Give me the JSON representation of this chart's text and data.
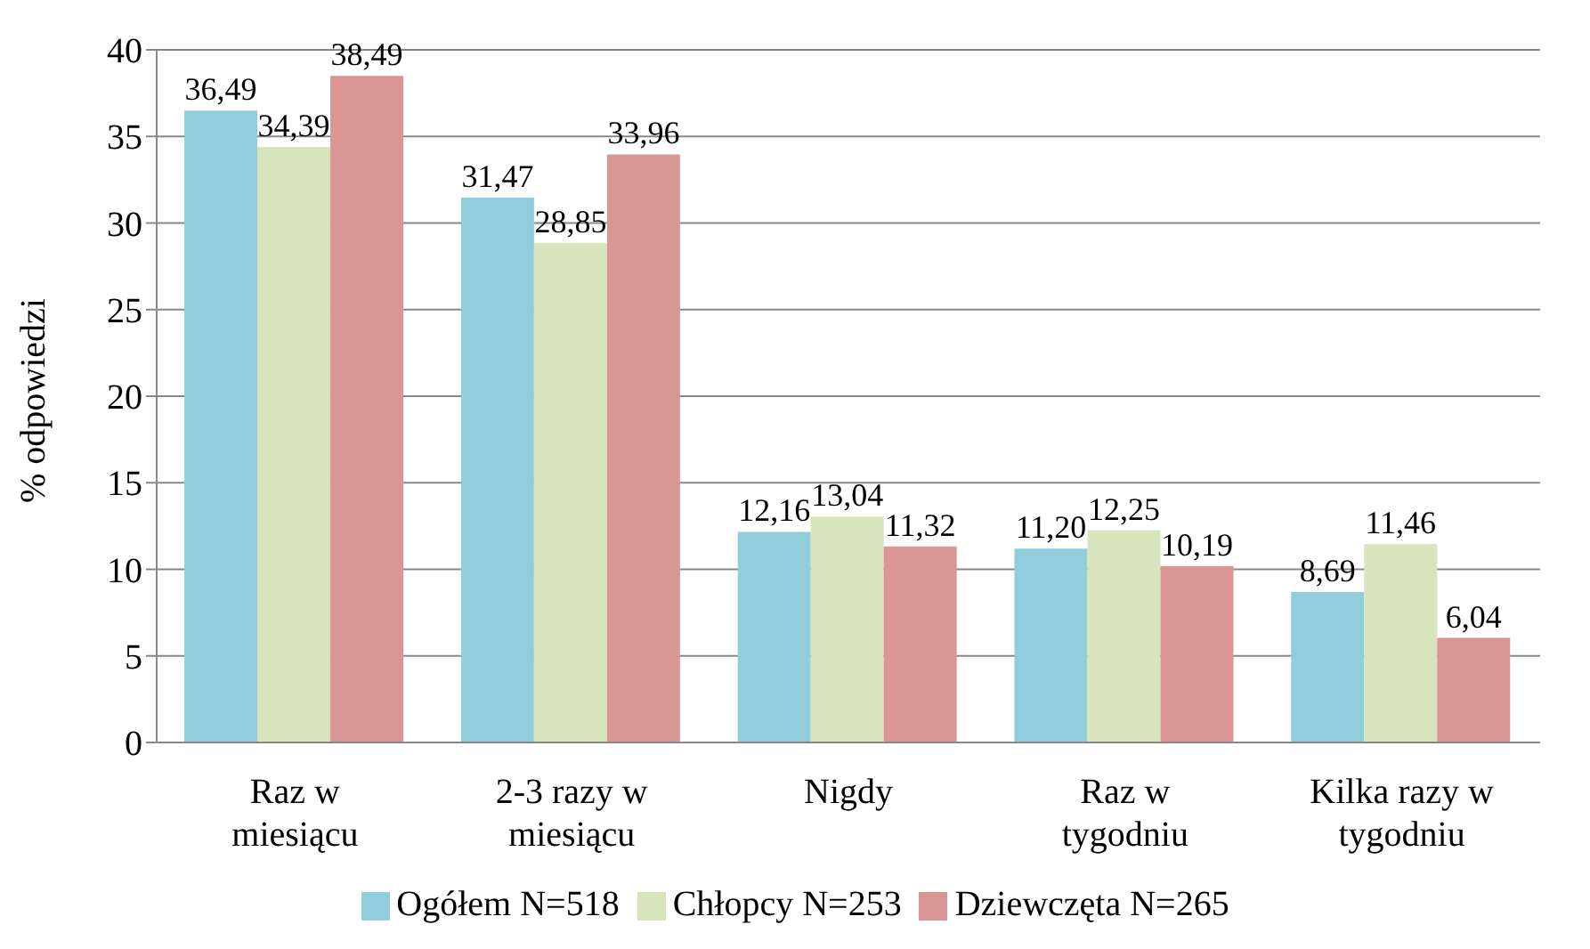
{
  "chart_data": {
    "type": "bar",
    "ylabel": "% odpowiedzi",
    "categories": [
      "Raz w miesiącu",
      "2-3 razy w miesiącu",
      "Nigdy",
      "Raz w tygodniu",
      "Kilka razy w tygodniu"
    ],
    "series": [
      {
        "name": "Ogółem N=518",
        "color": "#92cddc",
        "values": [
          36.49,
          31.47,
          12.16,
          11.2,
          8.69
        ],
        "value_labels": [
          "36,49",
          "31,47",
          "12,16",
          "11,20",
          "8,69"
        ]
      },
      {
        "name": "Chłopcy N=253",
        "color": "#d7e4bc",
        "values": [
          34.39,
          28.85,
          13.04,
          12.25,
          11.46
        ],
        "value_labels": [
          "34,39",
          "28,85",
          "13,04",
          "12,25",
          "11,46"
        ]
      },
      {
        "name": "Dziewczęta N=265",
        "color": "#d99694",
        "values": [
          38.49,
          33.96,
          11.32,
          10.19,
          6.04
        ],
        "value_labels": [
          "38,49",
          "33,96",
          "11,32",
          "10,19",
          "6,04"
        ]
      }
    ],
    "ylim": [
      0,
      40
    ],
    "yticks": [
      0,
      5,
      10,
      15,
      20,
      25,
      30,
      35,
      40
    ],
    "grid": "y",
    "legend": "bottom"
  }
}
